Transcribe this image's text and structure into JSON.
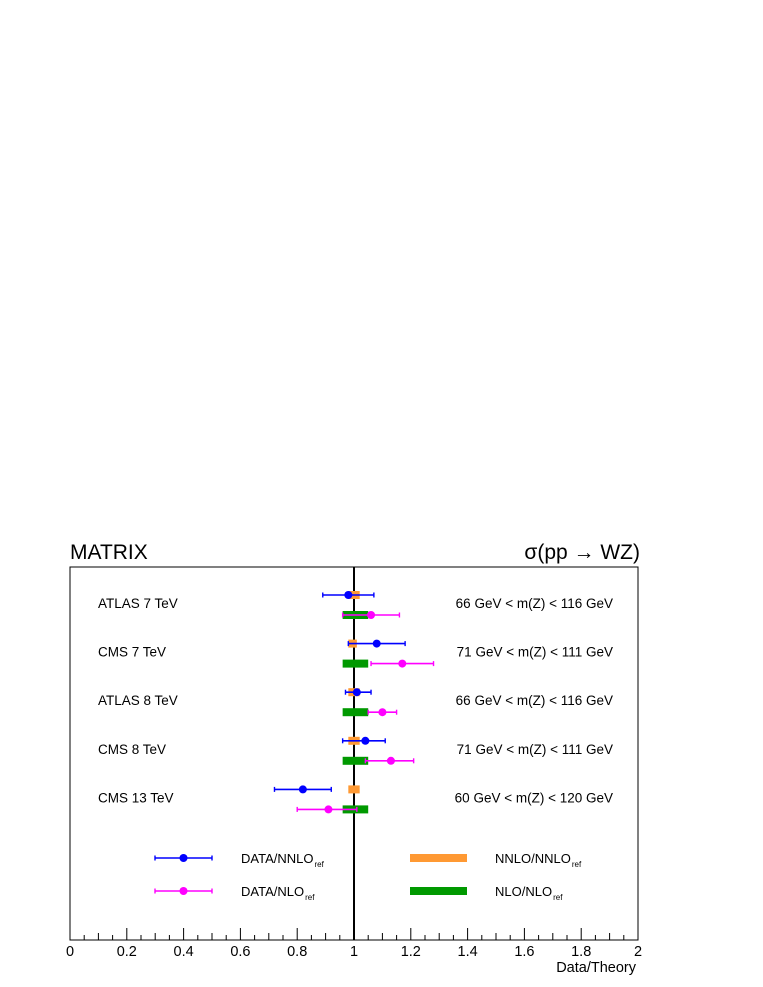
{
  "header": {
    "left": "MATRIX",
    "right": "σ(pp → WZ)"
  },
  "chart_data": {
    "type": "scatter",
    "orientation": "horizontal",
    "xlabel": "Data/Theory",
    "xlim": [
      0,
      2
    ],
    "xticks": [
      "0",
      "0.2",
      "0.4",
      "0.6",
      "0.8",
      "1",
      "1.2",
      "1.4",
      "1.6",
      "1.8",
      "2"
    ],
    "reference_line": 1,
    "measurements": [
      {
        "experiment": "ATLAS 7 TeV",
        "cut": "66 GeV < m(Z) < 116 GeV",
        "data_nnlo": {
          "value": 0.98,
          "low": 0.89,
          "high": 1.07
        },
        "data_nlo": {
          "value": 1.06,
          "low": 0.96,
          "high": 1.16
        },
        "nnlo_band": [
          0.98,
          1.02
        ],
        "nlo_band": [
          0.96,
          1.05
        ]
      },
      {
        "experiment": "CMS 7 TeV",
        "cut": "71 GeV < m(Z) < 111 GeV",
        "data_nnlo": {
          "value": 1.08,
          "low": 0.98,
          "high": 1.18
        },
        "data_nlo": {
          "value": 1.17,
          "low": 1.06,
          "high": 1.28
        },
        "nnlo_band": [
          0.98,
          1.01
        ],
        "nlo_band": [
          0.96,
          1.05
        ]
      },
      {
        "experiment": "ATLAS 8 TeV",
        "cut": "66 GeV < m(Z) < 116 GeV",
        "data_nnlo": {
          "value": 1.01,
          "low": 0.97,
          "high": 1.06
        },
        "data_nlo": {
          "value": 1.1,
          "low": 1.05,
          "high": 1.15
        },
        "nnlo_band": [
          0.98,
          1.02
        ],
        "nlo_band": [
          0.96,
          1.05
        ]
      },
      {
        "experiment": "CMS 8 TeV",
        "cut": "71 GeV < m(Z) < 111 GeV",
        "data_nnlo": {
          "value": 1.04,
          "low": 0.96,
          "high": 1.11
        },
        "data_nlo": {
          "value": 1.13,
          "low": 1.04,
          "high": 1.21
        },
        "nnlo_band": [
          0.98,
          1.02
        ],
        "nlo_band": [
          0.96,
          1.05
        ]
      },
      {
        "experiment": "CMS 13 TeV",
        "cut": "60 GeV < m(Z) < 120 GeV",
        "data_nnlo": {
          "value": 0.82,
          "low": 0.72,
          "high": 0.92
        },
        "data_nlo": {
          "value": 0.91,
          "low": 0.8,
          "high": 1.01
        },
        "nnlo_band": [
          0.98,
          1.02
        ],
        "nlo_band": [
          0.96,
          1.05
        ]
      }
    ],
    "legend": [
      {
        "label": "DATA/NNLO",
        "sub": "ref",
        "kind": "errorbar",
        "color": "#0000ff"
      },
      {
        "label": "DATA/NLO",
        "sub": "ref",
        "kind": "errorbar",
        "color": "#ff00ff"
      },
      {
        "label": "NNLO/NNLO",
        "sub": "ref",
        "kind": "band",
        "color": "#ff9933"
      },
      {
        "label": "NLO/NLO",
        "sub": "ref",
        "kind": "band",
        "color": "#009900"
      }
    ],
    "colors": {
      "data_nnlo": "#0000ff",
      "data_nlo": "#ff00ff",
      "nnlo_band": "#ff9933",
      "nlo_band": "#009900",
      "overlap": "#7f6fa0"
    }
  }
}
